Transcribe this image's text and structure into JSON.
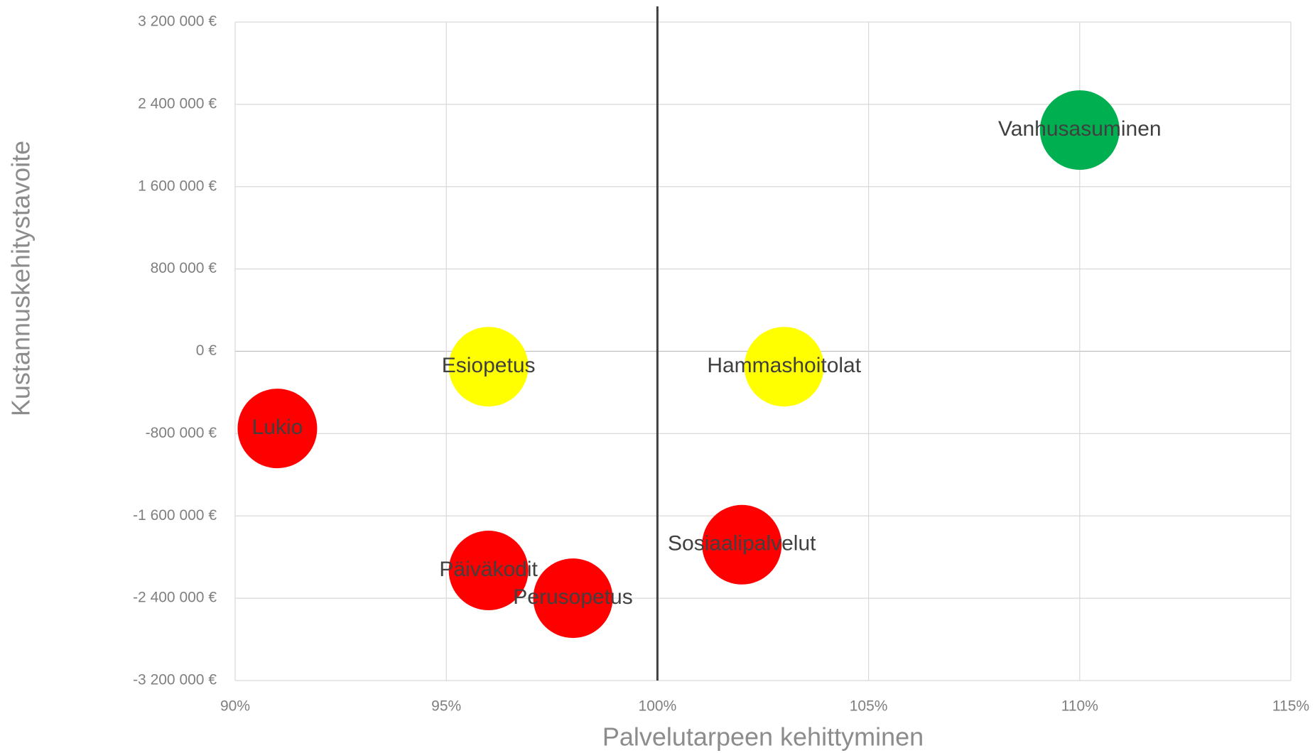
{
  "chart_data": {
    "type": "bubble",
    "x_label": "Palvelutarpeen kehittyminen",
    "y_label": "Kustannuskehitystavoite",
    "labels": [
      "Vanhusasuminen",
      "Esiopetus",
      "Hammashoitolat",
      "Lukio",
      "Sosiaalipalvelut",
      "Päiväkodit",
      "Perusopetus"
    ],
    "x": [
      110,
      96,
      103,
      91,
      102,
      96,
      98
    ],
    "values": [
      2150000,
      -150000,
      -150000,
      -750000,
      -1880000,
      -2130000,
      -2400000
    ],
    "colors": [
      "#00b050",
      "#ffff00",
      "#ffff00",
      "#ff0000",
      "#ff0000",
      "#ff0000",
      "#ff0000"
    ],
    "xlim": [
      90,
      115
    ],
    "xticks": [
      {
        "value": 90,
        "label": "90%"
      },
      {
        "value": 95,
        "label": "95%"
      },
      {
        "value": 100,
        "label": "100%"
      },
      {
        "value": 105,
        "label": "105%"
      },
      {
        "value": 110,
        "label": "110%"
      },
      {
        "value": 115,
        "label": "115%"
      }
    ],
    "ylim": [
      -3200000,
      3200000
    ],
    "yticks": [
      {
        "value": -3200000,
        "label": "-3 200 000 €"
      },
      {
        "value": -2400000,
        "label": "-2 400 000 €"
      },
      {
        "value": -1600000,
        "label": "-1 600 000 €"
      },
      {
        "value": -800000,
        "label": "-800 000 €"
      },
      {
        "value": 0,
        "label": "0 €"
      },
      {
        "value": 800000,
        "label": "800 000 €"
      },
      {
        "value": 1600000,
        "label": "1 600 000 €"
      },
      {
        "value": 2400000,
        "label": "2 400 000 €"
      },
      {
        "value": 3200000,
        "label": "3 200 000 €"
      }
    ],
    "x_reference_line": 100,
    "grid": true
  }
}
